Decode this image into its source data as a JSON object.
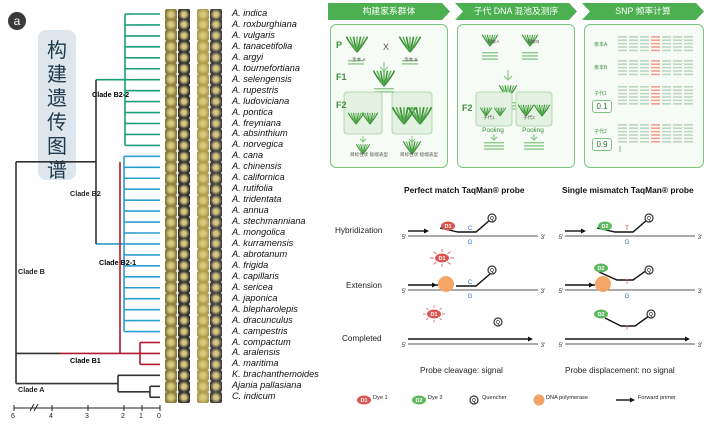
{
  "panel_label": "a",
  "vertical_title": [
    "构",
    "建",
    "遗",
    "传",
    "图",
    "谱"
  ],
  "species": [
    "A. indica",
    "A. roxburghiana",
    "A. vulgaris",
    "A. tanacetifolia",
    "A. argyi",
    "A. tournefortiana",
    "A. selengensis",
    "A. rupestris",
    "A. ludoviciana",
    "A. pontica",
    "A. freyniana",
    "A. absinthium",
    "A. norvegica",
    "A. cana",
    "A. chinensis",
    "A. californica",
    "A. rutifolia",
    "A. tridentata",
    "A. annua",
    "A. stechmanniana",
    "A. mongolica",
    "A. kurramensis",
    "A. abrotanum",
    "A. frigida",
    "A. capillaris",
    "A. sericea",
    "A. japonica",
    "A. blepharolepis",
    "A. dracunculus",
    "A. campestris",
    "A. compactum",
    "A. aralensis",
    "A. maritima",
    "K. brachanthemoides",
    "Ajania pallasiana",
    "C. indicum"
  ],
  "clades": {
    "b22": "Clade B2-2",
    "b2": "Clade B2",
    "b21": "Clade B2-1",
    "b": "Clade B",
    "b1": "Clade B1",
    "a": "Clade A"
  },
  "clade_colors": {
    "b22": "#1a9e7a",
    "b21": "#2a9fd0",
    "b1": "#b2182b",
    "base": "#333333"
  },
  "axis_ticks": [
    "6",
    "4",
    "3",
    "2",
    "1",
    "0"
  ],
  "pipeline": {
    "steps": [
      "构建家系群体",
      "子代 DNA 混池及测序",
      "SNP 频率计算"
    ],
    "gen_labels": [
      "P",
      "F1",
      "F2",
      "F2"
    ],
    "cross_symbol": "X",
    "parent_a": "亲本 A",
    "parent_b": "亲本 B",
    "pooling_1": "Pooling",
    "pooling_2": "Pooling",
    "sub_left": "目标性状\n极端表型",
    "sub_right": "目标性状\n极端表型",
    "child_1": "子代1",
    "child_2": "子代2",
    "freq_1": "0.1",
    "freq_2": "0.9",
    "mini_parent_a": "亲本A",
    "mini_parent_b": "亲本B",
    "child_pool_1": "子代1",
    "child_pool_2": "子代2"
  },
  "taqman": {
    "title_left": "Perfect match TaqMan® probe",
    "title_right": "Single mismatch TaqMan® probe",
    "rows": [
      "Hybridization",
      "Extension",
      "Completed"
    ],
    "foot_left": "Probe cleavage: signal",
    "foot_right": "Probe displacement: no signal",
    "d1": "D1",
    "d2": "D2",
    "q": "Q",
    "base_g": "G",
    "base_c": "C",
    "base_t": "T",
    "end5": "5'",
    "end3": "3'",
    "legend": {
      "dye1": "Dye 1",
      "dye2": "Dye 2",
      "quencher": "Quencher",
      "polymerase": "DNA polymerase",
      "primer": "Forward primer"
    },
    "colors": {
      "dye1": "#d9534f",
      "dye2": "#5cb85c",
      "polymerase": "#f4a261",
      "mismatch": "#c0392b",
      "match": "#2b6cb0"
    }
  }
}
